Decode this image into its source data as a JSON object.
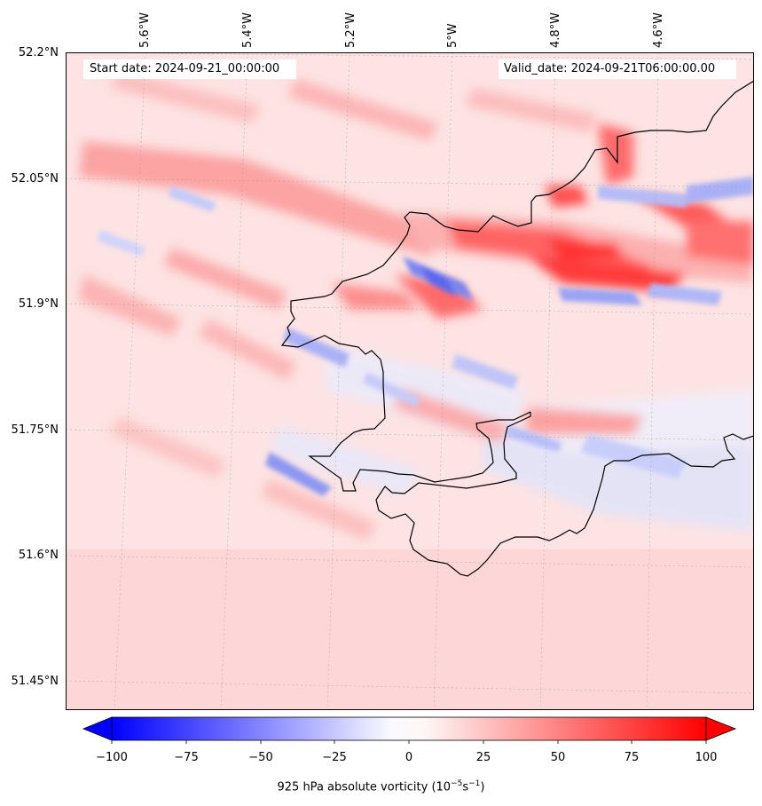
{
  "map": {
    "start_date": "Start date: 2024-09-21_00:00:00",
    "valid_date": "Valid_date: 2024-09-21T06:00:00.00",
    "lat_labels": [
      "52.2°N",
      "52.05°N",
      "51.9°N",
      "51.75°N",
      "51.6°N",
      "51.45°N"
    ],
    "lon_labels": [
      "5.6°W",
      "5.4°W",
      "5.2°W",
      "5°W",
      "4.8°W",
      "4.6°W"
    ],
    "colorbar": {
      "label_prefix": "925 hPa absolute vorticity (10",
      "label_exp1": "−5",
      "label_mid": "s",
      "label_exp2": "−1",
      "label_suffix": ")",
      "ticks": [
        "−100",
        "−75",
        "−50",
        "−25",
        "0",
        "25",
        "50",
        "75",
        "100"
      ],
      "min": -100,
      "max": 100,
      "low_color": "#0000ff",
      "mid_color": "#ffffff",
      "high_color": "#ff0000"
    }
  }
}
